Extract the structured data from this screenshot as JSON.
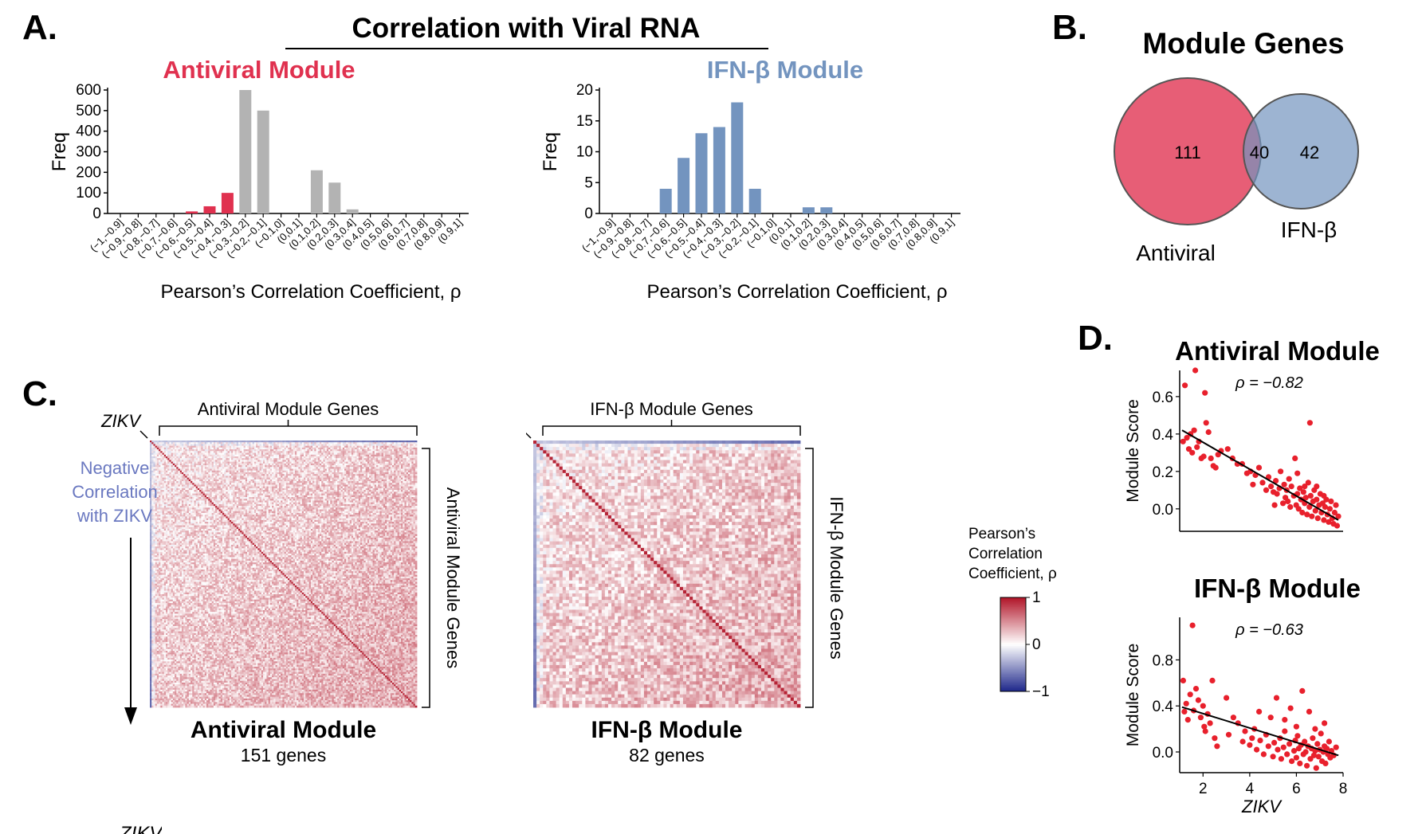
{
  "panels": {
    "a": {
      "letter": "A.",
      "title": "Correlation with Viral RNA"
    },
    "b": {
      "letter": "B.",
      "title": "Module Genes"
    },
    "c": {
      "letter": "C."
    },
    "d": {
      "letter": "D."
    }
  },
  "colors": {
    "antiviral_red": "#e0314f",
    "ifn_blue": "#7394bf",
    "grey_bar": "#b3b3b3",
    "scatter_red": "#e8202c",
    "heat_red": "#b11f2c",
    "heat_blue": "#2a2a8c"
  },
  "chart_data": [
    {
      "id": "hist-antiviral",
      "type": "bar",
      "title": "Antiviral Module",
      "xlabel": "Pearson’s Correlation Coefficient, ρ",
      "ylabel": "Freq",
      "categories": [
        "(−1,−0.9]",
        "(−0.9,−0.8]",
        "(−0.8,−0.7]",
        "(−0.7,−0.6]",
        "(−0.6,−0.5]",
        "(−0.5,−0.4]",
        "(−0.4,−0.3]",
        "(−0.3,−0.2]",
        "(−0.2,−0.1]",
        "(−0.1,0]",
        "(0,0.1]",
        "(0.1,0.2]",
        "(0.2,0.3]",
        "(0.3,0.4]",
        "(0.4,0.5]",
        "(0.5,0.6]",
        "(0.6,0.7]",
        "(0.7,0.8]",
        "(0.8,0.9]",
        "(0.9,1]"
      ],
      "values": [
        0,
        0,
        0,
        0,
        10,
        35,
        100,
        600,
        500,
        0,
        0,
        210,
        150,
        20,
        0,
        0,
        0,
        0,
        0,
        0
      ],
      "highlight_until_index": 6,
      "yticks": [
        0,
        100,
        200,
        300,
        400,
        500,
        600
      ],
      "ylim": [
        0,
        600
      ]
    },
    {
      "id": "hist-ifnb",
      "type": "bar",
      "title": "IFN-β Module",
      "xlabel": "Pearson’s Correlation Coefficient, ρ",
      "ylabel": "Freq",
      "categories": [
        "(−1,−0.9]",
        "(−0.9,−0.8]",
        "(−0.8,−0.7]",
        "(−0.7,−0.6]",
        "(−0.6,−0.5]",
        "(−0.5,−0.4]",
        "(−0.4,−0.3]",
        "(−0.3,−0.2]",
        "(−0.2,−0.1]",
        "(−0.1,0]",
        "(0,0.1]",
        "(0.1,0.2]",
        "(0.2,0.3]",
        "(0.3,0.4]",
        "(0.4,0.5]",
        "(0.5,0.6]",
        "(0.6,0.7]",
        "(0.7,0.8]",
        "(0.8,0.9]",
        "(0.9,1]"
      ],
      "values": [
        0,
        0,
        0,
        4,
        9,
        13,
        14,
        18,
        4,
        0,
        0,
        1,
        1,
        0,
        0,
        0,
        0,
        0,
        0,
        0
      ],
      "yticks": [
        0,
        5,
        10,
        15,
        20
      ],
      "ylim": [
        0,
        20
      ]
    },
    {
      "id": "venn",
      "type": "venn",
      "sets": [
        {
          "name": "Antiviral",
          "only": "111"
        },
        {
          "name": "IFN-β",
          "only": "42"
        }
      ],
      "overlap": "40"
    },
    {
      "id": "heat-antiviral",
      "type": "heatmap",
      "top_label": "Antiviral Module Genes",
      "side_label": "Antiviral Module Genes",
      "corner_label": "ZIKV",
      "left_note": [
        "Negative",
        "Correlation",
        "with ZIKV"
      ],
      "title": "Antiviral Module",
      "subtitle": "151 genes",
      "n_genes": 151
    },
    {
      "id": "heat-ifnb",
      "type": "heatmap",
      "top_label": "IFN-β Module Genes",
      "side_label": "IFN-β Module Genes",
      "corner_label": "ZIKV",
      "title": "IFN-β Module",
      "subtitle": "82 genes",
      "n_genes": 82
    },
    {
      "id": "colorbar",
      "type": "colorbar",
      "label": [
        "Pearson’s",
        "Correlation",
        "Coefficient, ρ"
      ],
      "ticks": [
        "1",
        "0",
        "−1"
      ],
      "range": [
        -1,
        1
      ]
    },
    {
      "id": "scatter-antiviral",
      "type": "scatter",
      "title": "Antiviral Module",
      "annotation": "ρ = −0.82",
      "ylabel": "Module Score",
      "xlim": [
        1,
        7.8
      ],
      "ylim": [
        -0.12,
        0.74
      ],
      "yticks": [
        0.0,
        0.2,
        0.4,
        0.6
      ],
      "ytick_labels": [
        "0.0",
        "0.2",
        "0.4",
        "0.6"
      ],
      "fit": [
        [
          1.1,
          0.42
        ],
        [
          7.6,
          -0.06
        ]
      ],
      "points": [
        [
          1.14,
          0.36
        ],
        [
          1.22,
          0.66
        ],
        [
          1.3,
          0.38
        ],
        [
          1.38,
          0.32
        ],
        [
          1.45,
          0.4
        ],
        [
          1.52,
          0.3
        ],
        [
          1.6,
          0.42
        ],
        [
          1.65,
          0.74
        ],
        [
          1.72,
          0.33
        ],
        [
          1.8,
          0.36
        ],
        [
          1.9,
          0.27
        ],
        [
          2.0,
          0.28
        ],
        [
          2.05,
          0.62
        ],
        [
          2.1,
          0.46
        ],
        [
          2.2,
          0.41
        ],
        [
          2.3,
          0.27
        ],
        [
          2.4,
          0.23
        ],
        [
          2.5,
          0.22
        ],
        [
          2.6,
          0.29
        ],
        [
          2.72,
          0.31
        ],
        [
          3.0,
          0.32
        ],
        [
          3.2,
          0.27
        ],
        [
          3.4,
          0.24
        ],
        [
          3.6,
          0.24
        ],
        [
          3.8,
          0.19
        ],
        [
          3.95,
          0.2
        ],
        [
          4.05,
          0.13
        ],
        [
          4.15,
          0.18
        ],
        [
          4.3,
          0.22
        ],
        [
          4.45,
          0.14
        ],
        [
          4.6,
          0.1
        ],
        [
          4.7,
          0.17
        ],
        [
          4.8,
          0.12
        ],
        [
          4.9,
          0.09
        ],
        [
          5.0,
          0.15
        ],
        [
          5.05,
          0.08
        ],
        [
          5.15,
          0.11
        ],
        [
          5.2,
          0.2
        ],
        [
          5.3,
          0.03
        ],
        [
          5.35,
          0.13
        ],
        [
          5.45,
          0.1
        ],
        [
          5.5,
          0.04
        ],
        [
          5.55,
          0.16
        ],
        [
          5.6,
          0.01
        ],
        [
          5.65,
          0.12
        ],
        [
          5.75,
          0.07
        ],
        [
          5.8,
          0.27
        ],
        [
          5.85,
          0.02
        ],
        [
          5.9,
          0.08
        ],
        [
          5.95,
          0.0
        ],
        [
          6.0,
          0.11
        ],
        [
          6.05,
          0.05
        ],
        [
          6.1,
          -0.02
        ],
        [
          6.15,
          0.09
        ],
        [
          6.2,
          0.03
        ],
        [
          6.25,
          0.06
        ],
        [
          6.3,
          -0.03
        ],
        [
          6.35,
          0.14
        ],
        [
          6.4,
          0.01
        ],
        [
          6.42,
          0.46
        ],
        [
          6.45,
          0.07
        ],
        [
          6.5,
          -0.04
        ],
        [
          6.55,
          0.04
        ],
        [
          6.6,
          0.1
        ],
        [
          6.65,
          -0.01
        ],
        [
          6.7,
          0.05
        ],
        [
          6.75,
          -0.05
        ],
        [
          6.8,
          0.02
        ],
        [
          6.85,
          0.08
        ],
        [
          6.9,
          -0.02
        ],
        [
          6.95,
          0.03
        ],
        [
          7.0,
          -0.06
        ],
        [
          7.05,
          0.01
        ],
        [
          7.1,
          0.05
        ],
        [
          7.15,
          -0.03
        ],
        [
          7.2,
          -0.07
        ],
        [
          7.25,
          0.0
        ],
        [
          7.3,
          0.04
        ],
        [
          7.35,
          -0.05
        ],
        [
          7.4,
          -0.08
        ],
        [
          7.45,
          -0.02
        ],
        [
          7.5,
          0.02
        ],
        [
          7.55,
          -0.09
        ],
        [
          7.6,
          -0.04
        ],
        [
          6.2,
          0.12
        ],
        [
          5.9,
          0.19
        ],
        [
          5.4,
          0.06
        ],
        [
          6.7,
          0.12
        ],
        [
          7.0,
          0.07
        ],
        [
          4.95,
          0.02
        ]
      ]
    },
    {
      "id": "scatter-ifnb",
      "type": "scatter",
      "title": "IFN-β Module",
      "annotation": "ρ = −0.63",
      "xlabel": "ZIKV",
      "ylabel": "Module Score",
      "xlim": [
        1,
        8
      ],
      "ylim": [
        -0.18,
        1.17
      ],
      "xticks": [
        2,
        4,
        6,
        8
      ],
      "yticks": [
        0.0,
        0.4,
        0.8
      ],
      "ytick_labels": [
        "0.0",
        "0.4",
        "0.8"
      ],
      "fit": [
        [
          1.1,
          0.39
        ],
        [
          7.8,
          -0.03
        ]
      ],
      "points": [
        [
          1.15,
          0.62
        ],
        [
          1.2,
          0.35
        ],
        [
          1.28,
          0.42
        ],
        [
          1.35,
          0.28
        ],
        [
          1.45,
          0.5
        ],
        [
          1.55,
          1.1
        ],
        [
          1.6,
          0.36
        ],
        [
          1.7,
          0.55
        ],
        [
          1.8,
          0.45
        ],
        [
          1.9,
          0.3
        ],
        [
          2.0,
          0.4
        ],
        [
          2.05,
          0.22
        ],
        [
          2.1,
          0.18
        ],
        [
          2.2,
          0.33
        ],
        [
          2.3,
          0.25
        ],
        [
          2.4,
          0.62
        ],
        [
          2.5,
          0.12
        ],
        [
          2.6,
          0.05
        ],
        [
          3.0,
          0.47
        ],
        [
          3.1,
          0.15
        ],
        [
          3.3,
          0.3
        ],
        [
          3.5,
          0.25
        ],
        [
          3.7,
          0.09
        ],
        [
          3.8,
          0.18
        ],
        [
          4.0,
          0.06
        ],
        [
          4.1,
          0.12
        ],
        [
          4.2,
          0.2
        ],
        [
          4.3,
          0.02
        ],
        [
          4.45,
          0.1
        ],
        [
          4.6,
          -0.02
        ],
        [
          4.7,
          0.15
        ],
        [
          4.8,
          0.05
        ],
        [
          4.9,
          0.3
        ],
        [
          5.0,
          -0.04
        ],
        [
          5.05,
          0.08
        ],
        [
          5.15,
          0.47
        ],
        [
          5.2,
          0.02
        ],
        [
          5.3,
          0.12
        ],
        [
          5.35,
          -0.06
        ],
        [
          5.45,
          0.04
        ],
        [
          5.5,
          0.18
        ],
        [
          5.6,
          -0.02
        ],
        [
          5.7,
          0.07
        ],
        [
          5.75,
          0.38
        ],
        [
          5.8,
          -0.08
        ],
        [
          5.9,
          0.01
        ],
        [
          5.95,
          0.1
        ],
        [
          6.0,
          -0.05
        ],
        [
          6.05,
          0.14
        ],
        [
          6.1,
          0.03
        ],
        [
          6.15,
          -0.1
        ],
        [
          6.2,
          0.06
        ],
        [
          6.25,
          0.53
        ],
        [
          6.3,
          -0.02
        ],
        [
          6.35,
          0.09
        ],
        [
          6.4,
          0.0
        ],
        [
          6.45,
          -0.12
        ],
        [
          6.5,
          0.05
        ],
        [
          6.55,
          0.35
        ],
        [
          6.6,
          -0.06
        ],
        [
          6.65,
          0.03
        ],
        [
          6.7,
          0.12
        ],
        [
          6.75,
          -0.03
        ],
        [
          6.8,
          0.01
        ],
        [
          6.85,
          -0.14
        ],
        [
          6.9,
          0.07
        ],
        [
          6.95,
          -0.04
        ],
        [
          7.0,
          0.02
        ],
        [
          7.05,
          0.16
        ],
        [
          7.1,
          -0.08
        ],
        [
          7.15,
          0.0
        ],
        [
          7.2,
          0.05
        ],
        [
          7.25,
          -0.1
        ],
        [
          7.3,
          0.03
        ],
        [
          7.35,
          -0.02
        ],
        [
          7.4,
          0.09
        ],
        [
          7.45,
          -0.05
        ],
        [
          7.5,
          0.01
        ],
        [
          7.6,
          -0.03
        ],
        [
          7.7,
          0.04
        ],
        [
          6.0,
          0.22
        ],
        [
          5.5,
          0.28
        ],
        [
          4.4,
          0.35
        ],
        [
          6.8,
          0.2
        ],
        [
          7.2,
          0.25
        ]
      ]
    }
  ],
  "footer": {
    "text": "ZIKV"
  }
}
